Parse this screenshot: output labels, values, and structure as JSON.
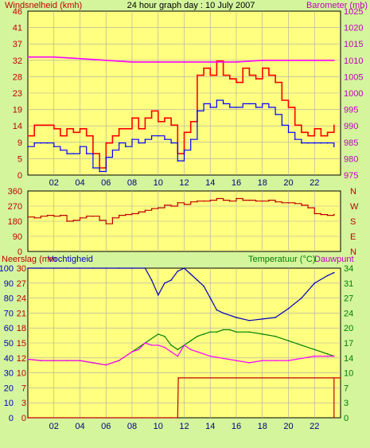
{
  "colors": {
    "background": "#d4f59c",
    "plot_bg": "#ffff80",
    "grid": "#a9a9a9",
    "wind_gust": "#ff0000",
    "wind_avg": "#0000ff",
    "barometer": "#ff00ff",
    "direction": "#c00000",
    "humidity": "#0000c0",
    "rain": "#c00000",
    "temperature": "#008000",
    "dewpoint": "#ff00ff"
  },
  "header": {
    "left": "Windsnelheid (kmh)",
    "title": "24 hour graph day : 10 July 2007",
    "right": "Barometer (mb)"
  },
  "panel3_header": {
    "rain": "Neerslag (mm",
    "humidity": "Vochtigheid",
    "temperature": "Temperatuur (°C)",
    "dewpoint": "Dauwpunt"
  },
  "chart_data": [
    {
      "type": "line",
      "panel": "wind-barometer",
      "x_ticks": [
        "02",
        "04",
        "06",
        "08",
        "10",
        "12",
        "14",
        "16",
        "18",
        "20",
        "22"
      ],
      "xlim": [
        0,
        24
      ],
      "y_left_ticks": [
        "0",
        "5",
        "9",
        "14",
        "19",
        "23",
        "28",
        "32",
        "37",
        "41",
        "46"
      ],
      "ylim_left": [
        0,
        46
      ],
      "y_right_ticks": [
        "975",
        "980",
        "985",
        "990",
        "995",
        "1000",
        "1005",
        "1010",
        "1015",
        "1020",
        "1025"
      ],
      "ylim_right": [
        975,
        1025
      ],
      "grid": true,
      "series": [
        {
          "name": "Windsnelheid (kmh)",
          "role": "gust",
          "axis": "left",
          "x": [
            0,
            0.5,
            1,
            1.5,
            2,
            2.5,
            3,
            3.5,
            4,
            4.5,
            5,
            5.5,
            6,
            6.5,
            7,
            7.5,
            8,
            8.5,
            9,
            9.5,
            10,
            10.5,
            11,
            11.5,
            12,
            12.5,
            13,
            13.5,
            14,
            14.5,
            15,
            15.5,
            16,
            16.5,
            17,
            17.5,
            18,
            18.5,
            19,
            19.5,
            20,
            20.5,
            21,
            21.5,
            22,
            22.5,
            23,
            23.5
          ],
          "values": [
            11,
            14,
            14,
            14,
            13,
            11,
            13,
            12,
            13,
            11,
            6,
            2,
            9,
            11,
            13,
            13,
            16,
            13,
            16,
            18,
            15,
            16,
            14,
            6,
            12,
            15,
            28,
            30,
            28,
            32,
            28,
            27,
            26,
            30,
            28,
            27,
            30,
            28,
            26,
            21,
            19,
            14,
            12,
            11,
            13,
            11,
            12,
            14
          ]
        },
        {
          "name": "",
          "role": "average",
          "axis": "left",
          "x": [
            0,
            0.5,
            1,
            1.5,
            2,
            2.5,
            3,
            3.5,
            4,
            4.5,
            5,
            5.5,
            6,
            6.5,
            7,
            7.5,
            8,
            8.5,
            9,
            9.5,
            10,
            10.5,
            11,
            11.5,
            12,
            12.5,
            13,
            13.5,
            14,
            14.5,
            15,
            15.5,
            16,
            16.5,
            17,
            17.5,
            18,
            18.5,
            19,
            19.5,
            20,
            20.5,
            21,
            21.5,
            22,
            22.5,
            23,
            23.5
          ],
          "values": [
            8,
            9,
            9,
            9,
            8,
            7,
            6,
            6,
            8,
            6,
            2,
            1,
            5,
            7,
            9,
            8,
            10,
            9,
            10,
            11,
            11,
            10,
            9,
            4,
            7,
            10,
            18,
            20,
            19,
            21,
            20,
            19,
            19,
            20,
            20,
            19,
            20,
            19,
            17,
            14,
            12,
            10,
            9,
            9,
            9,
            9,
            9,
            8
          ]
        },
        {
          "name": "Barometer (mb)",
          "role": "pressure",
          "axis": "right",
          "x": [
            0,
            2,
            4,
            6,
            8,
            10,
            12,
            14,
            16,
            18,
            20,
            22,
            23.5
          ],
          "values": [
            1011,
            1011,
            1010.5,
            1010,
            1009.5,
            1009.5,
            1009.5,
            1009.5,
            1009.5,
            1010,
            1010,
            1010,
            1010
          ]
        }
      ]
    },
    {
      "type": "line",
      "panel": "wind-direction",
      "x_ticks": [],
      "xlim": [
        0,
        24
      ],
      "y_left_ticks": [
        "0",
        "90",
        "180",
        "270",
        "360"
      ],
      "ylim_left": [
        0,
        360
      ],
      "y_right_ticks": [
        "N",
        "E",
        "S",
        "W",
        "N"
      ],
      "grid": true,
      "series": [
        {
          "name": "",
          "role": "direction",
          "axis": "left",
          "x": [
            0,
            0.5,
            1,
            1.5,
            2,
            2.5,
            3,
            3.5,
            4,
            4.5,
            5,
            5.5,
            6,
            6.5,
            7,
            7.5,
            8,
            8.5,
            9,
            9.5,
            10,
            10.5,
            11,
            11.5,
            12,
            12.5,
            13,
            13.5,
            14,
            14.5,
            15,
            15.5,
            16,
            16.5,
            17,
            17.5,
            18,
            18.5,
            19,
            19.5,
            20,
            20.5,
            21,
            21.5,
            22,
            22.5,
            23,
            23.5
          ],
          "values": [
            205,
            200,
            210,
            215,
            210,
            215,
            180,
            185,
            200,
            210,
            210,
            185,
            165,
            200,
            215,
            220,
            225,
            235,
            245,
            255,
            260,
            275,
            270,
            290,
            280,
            295,
            300,
            300,
            305,
            315,
            305,
            300,
            315,
            305,
            305,
            300,
            300,
            305,
            295,
            290,
            290,
            285,
            275,
            260,
            225,
            220,
            215,
            220
          ]
        }
      ]
    },
    {
      "type": "line",
      "panel": "rain-humidity-temperature",
      "x_ticks": [
        "02",
        "04",
        "06",
        "08",
        "10",
        "12",
        "14",
        "16",
        "18",
        "20",
        "22"
      ],
      "xlim": [
        0,
        24
      ],
      "y_left_ticks": [
        "0",
        "10",
        "20",
        "30",
        "40",
        "50",
        "60",
        "70",
        "80",
        "90",
        "100"
      ],
      "ylim_left": [
        0,
        100
      ],
      "y_rain_ticks": [
        "0",
        "3",
        "7",
        "10",
        "12",
        "15",
        "18",
        "21",
        "24",
        "27",
        "30"
      ],
      "ylim_rain": [
        0,
        30
      ],
      "y_right_ticks": [
        "0",
        "3",
        "7",
        "10",
        "14",
        "17",
        "20",
        "24",
        "27",
        "31",
        "34"
      ],
      "ylim_right": [
        0,
        34
      ],
      "grid": true,
      "series": [
        {
          "name": "Vochtigheid",
          "role": "humidity",
          "axis": "left",
          "x": [
            0,
            1,
            2,
            3,
            4,
            5,
            6,
            7,
            8,
            9,
            9.5,
            10,
            10.5,
            11,
            11.5,
            12,
            12.5,
            13,
            13.5,
            14,
            14.5,
            15,
            16,
            17,
            18,
            19,
            20,
            21,
            22,
            23,
            23.5
          ],
          "values": [
            100,
            100,
            100,
            100,
            100,
            100,
            100,
            100,
            100,
            100,
            92,
            82,
            90,
            92,
            98,
            100,
            96,
            92,
            88,
            80,
            72,
            70,
            67,
            65,
            66,
            67,
            73,
            80,
            90,
            95,
            97
          ]
        },
        {
          "name": "Neerslag (mm",
          "role": "rain",
          "axis": "rain",
          "x": [
            0,
            11,
            11.5,
            11.55,
            24
          ],
          "values": [
            0,
            0,
            0,
            8,
            8
          ]
        },
        {
          "name": "Temperatuur (°C)",
          "role": "temperature",
          "axis": "right",
          "x": [
            0,
            1,
            2,
            3,
            4,
            5,
            6,
            7,
            8,
            9,
            10,
            10.5,
            11,
            11.5,
            12,
            12.5,
            13,
            13.5,
            14,
            14.5,
            15,
            15.5,
            16,
            17,
            18,
            19,
            20,
            21,
            22,
            23,
            23.5
          ],
          "values": [
            13.3,
            13,
            13,
            13,
            13,
            12.5,
            12,
            13,
            15,
            17,
            19,
            18.5,
            16.5,
            15.5,
            16.5,
            17.5,
            18.5,
            19,
            19.5,
            19.5,
            20,
            20,
            19.5,
            19.5,
            19,
            18.5,
            17.5,
            16.5,
            15.5,
            14.5,
            14
          ]
        },
        {
          "name": "Dauwpunt",
          "role": "dewpoint",
          "axis": "right",
          "x": [
            0,
            1,
            2,
            3,
            4,
            5,
            6,
            7,
            8,
            8.5,
            9,
            9.5,
            10,
            10.5,
            11,
            11.5,
            12,
            12.5,
            13,
            13.5,
            14,
            15,
            16,
            17,
            18,
            19,
            20,
            21,
            22,
            23,
            23.5
          ],
          "values": [
            13.3,
            13,
            13,
            13,
            13,
            12.5,
            12,
            13,
            15,
            15.5,
            17,
            16.5,
            16.5,
            16,
            15,
            14,
            16.5,
            15.5,
            15,
            14.5,
            14,
            13.5,
            13,
            12.5,
            13,
            13,
            13,
            13.5,
            14,
            14,
            14
          ]
        }
      ]
    }
  ]
}
